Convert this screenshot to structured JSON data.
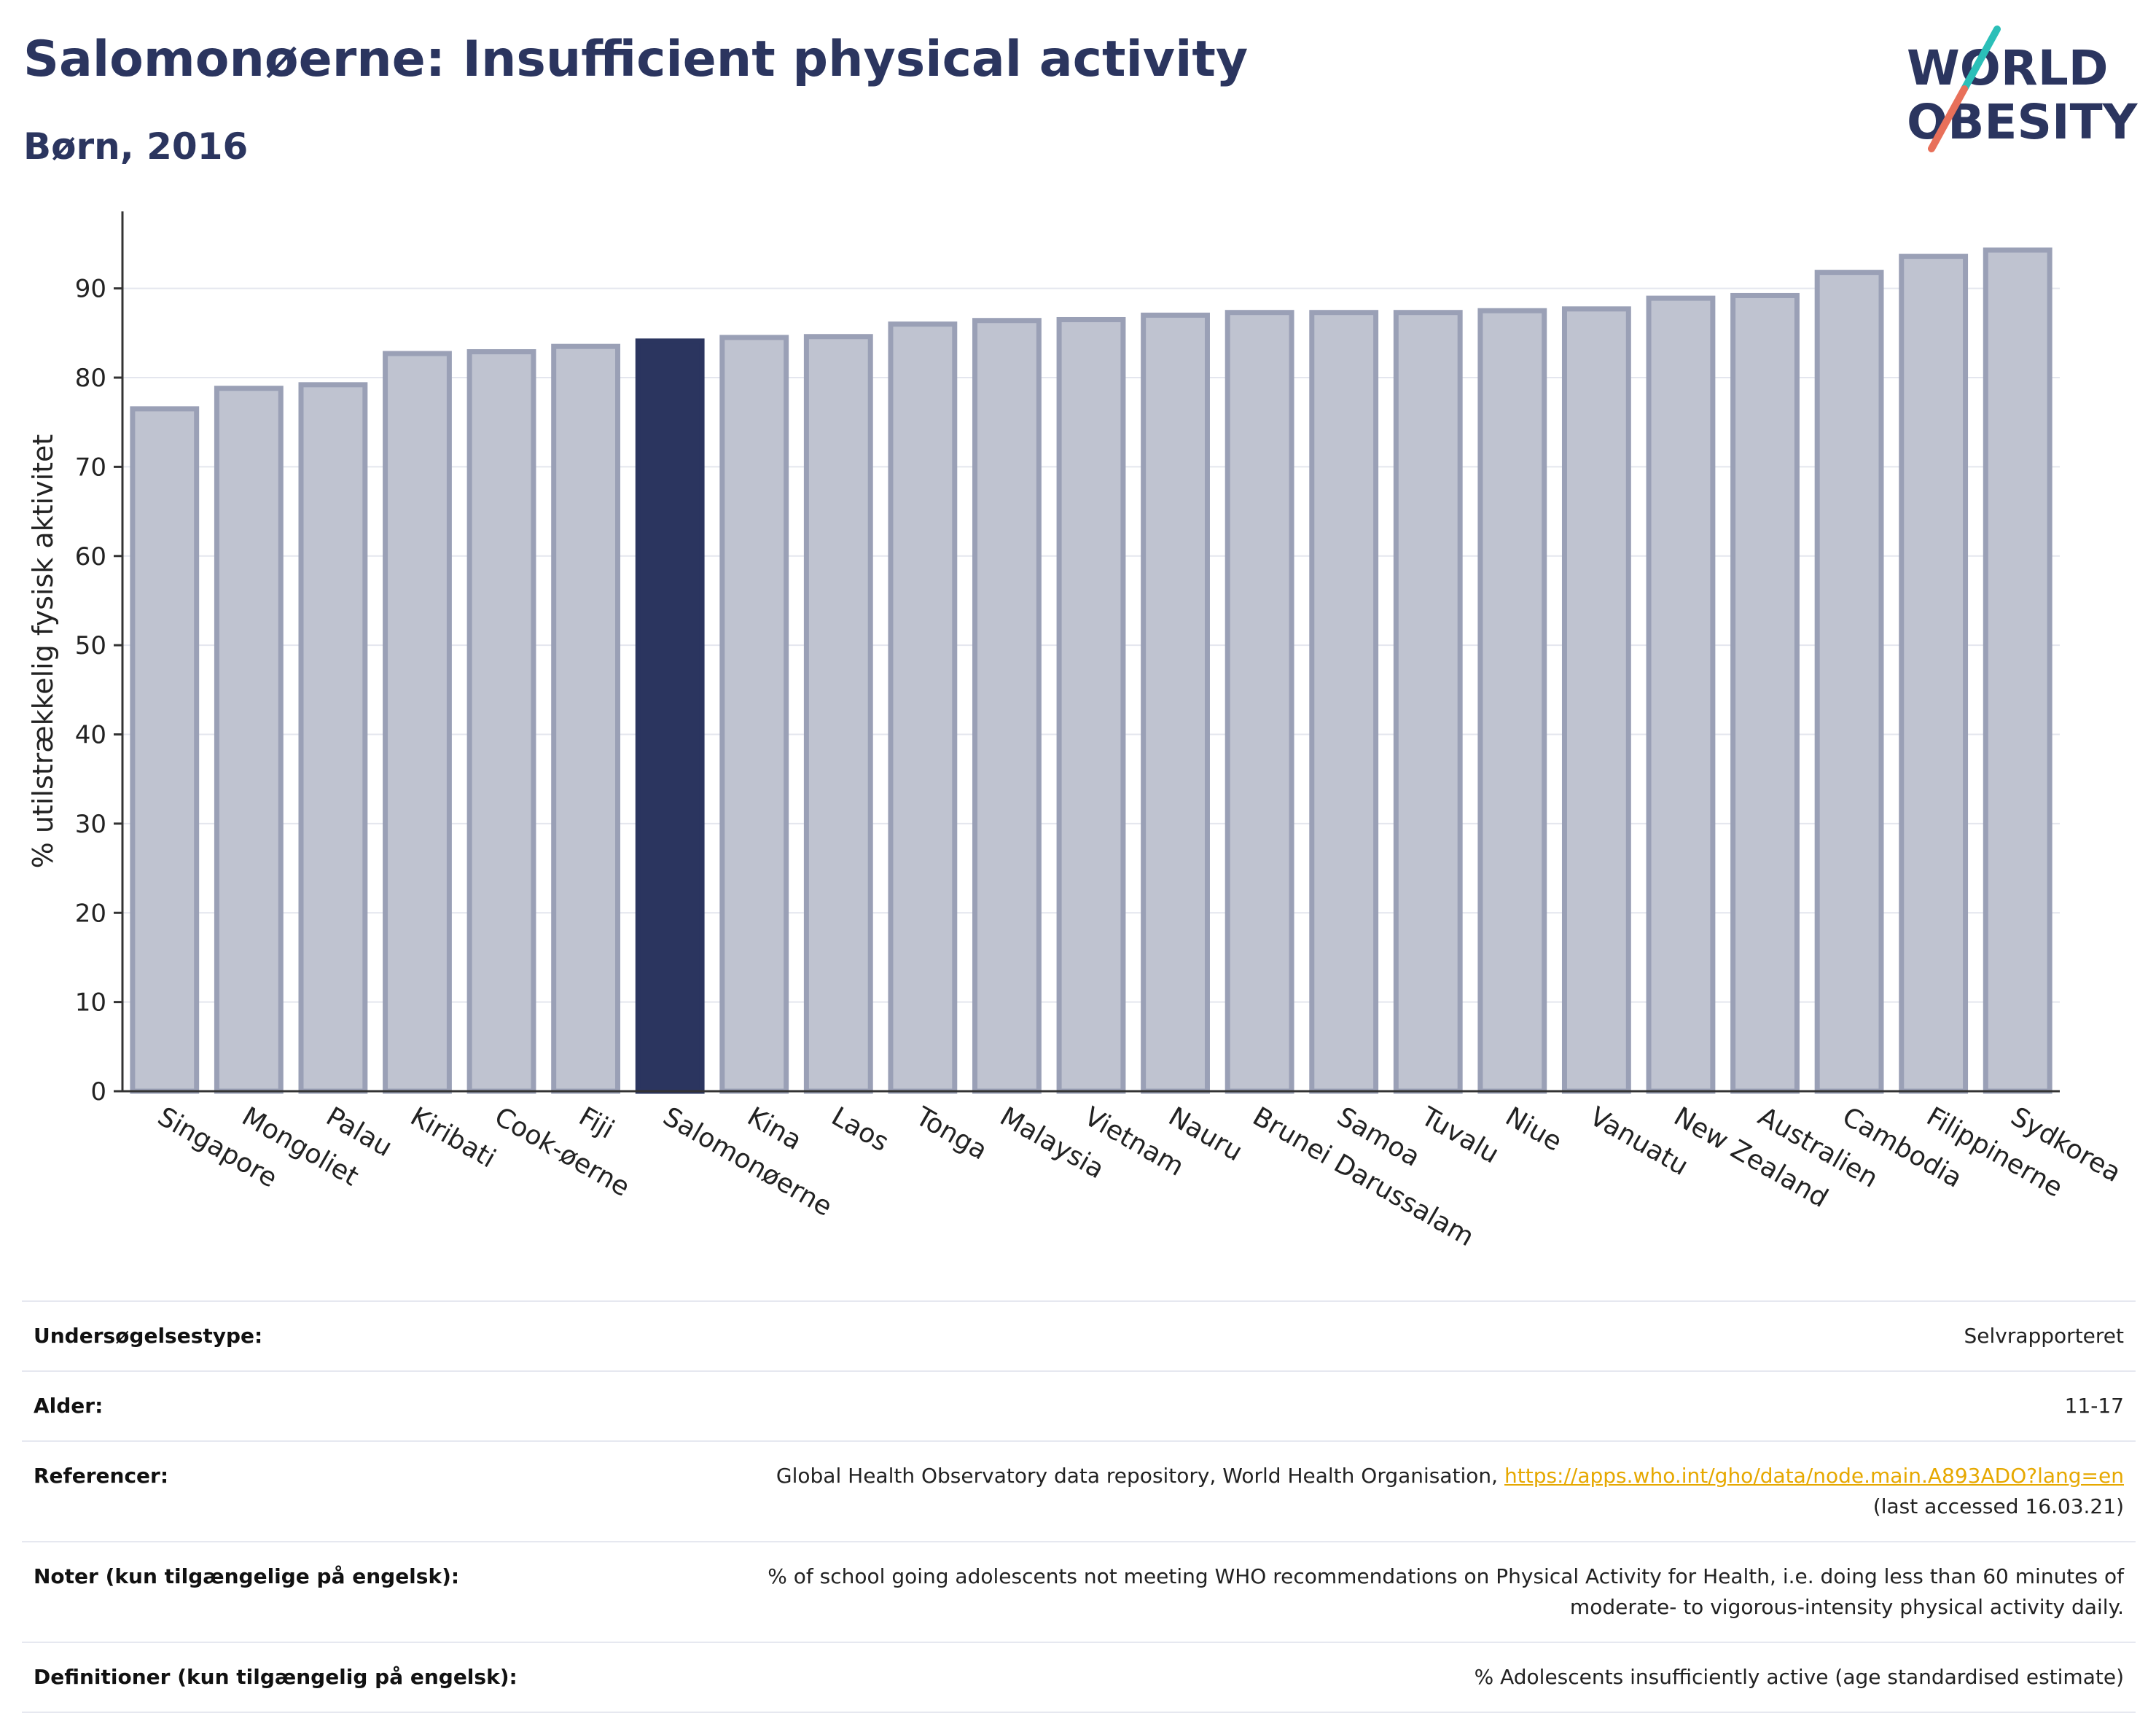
{
  "header": {
    "title": "Salomonøerne: Insufficient physical activity",
    "subtitle": "Børn, 2016"
  },
  "logo": {
    "line1": "WORLD",
    "line2": "OBESITY",
    "slash_color_top": "#2bbfb8",
    "slash_color_bottom": "#e8705a"
  },
  "colors": {
    "highlight": "#2b355f",
    "bar_fill": "#bfc3d0",
    "bar_stroke": "#9aa0b6"
  },
  "chart_data": {
    "type": "bar",
    "ylabel": "% utilstrækkelig fysisk aktivitet",
    "ylim": [
      0,
      97
    ],
    "yticks": [
      0,
      10,
      20,
      30,
      40,
      50,
      60,
      70,
      80,
      90
    ],
    "grid": true,
    "highlight": "Salomonøerne",
    "categories": [
      "Singapore",
      "Mongoliet",
      "Palau",
      "Kiribati",
      "Cook-øerne",
      "Fiji",
      "Salomonøerne",
      "Kina",
      "Laos",
      "Tonga",
      "Malaysia",
      "Vietnam",
      "Nauru",
      "Brunei Darussalam",
      "Samoa",
      "Tuvalu",
      "Niue",
      "Vanuatu",
      "New Zealand",
      "Australien",
      "Cambodia",
      "Filippinerne",
      "Sydkorea"
    ],
    "values": [
      76.5,
      78.8,
      79.2,
      82.7,
      82.9,
      83.5,
      84.1,
      84.5,
      84.6,
      86.0,
      86.4,
      86.5,
      87.0,
      87.3,
      87.3,
      87.3,
      87.5,
      87.7,
      88.9,
      89.2,
      91.8,
      93.6,
      94.3
    ]
  },
  "info": {
    "rows": [
      {
        "label": "Undersøgelsestype:",
        "value": "Selvrapporteret"
      },
      {
        "label": "Alder:",
        "value": "11-17"
      },
      {
        "label": "Referencer:",
        "value": "Global Health Observatory data repository, World Health Organisation, ",
        "link": "https://apps.who.int/gho/data/node.main.A893ADO?lang=en",
        "value2": "(last accessed 16.03.21)"
      },
      {
        "label": "Noter (kun tilgængelige på engelsk):",
        "value": "% of school going adolescents not meeting WHO recommendations on Physical Activity for Health, i.e. doing less than 60 minutes of",
        "value2": "moderate- to vigorous-intensity physical activity daily."
      },
      {
        "label": "Definitioner (kun tilgængelig på engelsk):",
        "value": "% Adolescents insufficiently active (age standardised estimate)"
      }
    ]
  }
}
